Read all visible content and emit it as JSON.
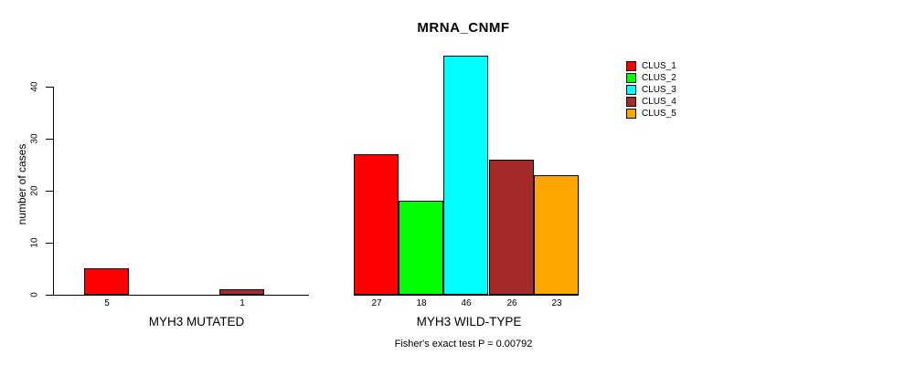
{
  "chart_data": {
    "type": "bar",
    "title": "MRNA_CNMF",
    "ylabel": "number of cases",
    "ylim": [
      0,
      46
    ],
    "yticks": [
      0,
      10,
      20,
      30,
      40
    ],
    "grid": false,
    "legend_position": "top-right",
    "series": [
      {
        "name": "CLUS_1",
        "color": "#ff0000"
      },
      {
        "name": "CLUS_2",
        "color": "#00ff00"
      },
      {
        "name": "CLUS_3",
        "color": "#00ffff"
      },
      {
        "name": "CLUS_4",
        "color": "#a52a2a"
      },
      {
        "name": "CLUS_5",
        "color": "#ffa500"
      }
    ],
    "groups": [
      {
        "label": "MYH3 MUTATED",
        "values": [
          5,
          0,
          0,
          1,
          0
        ]
      },
      {
        "label": "MYH3 WILD-TYPE",
        "values": [
          27,
          18,
          46,
          26,
          23
        ]
      }
    ],
    "annotation": "Fisher's exact test P = 0.00792"
  }
}
